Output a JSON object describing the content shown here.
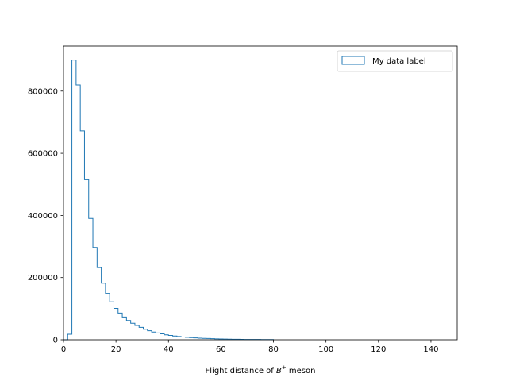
{
  "chart_data": {
    "type": "histogram",
    "title": "",
    "xlabel_prefix": "Flight distance of ",
    "xlabel_symbol": "B",
    "xlabel_superscript": "+",
    "xlabel_suffix": " meson",
    "ylabel": "",
    "xlim": [
      0,
      150
    ],
    "ylim": [
      0,
      945000
    ],
    "xticks": [
      0,
      20,
      40,
      60,
      80,
      100,
      120,
      140
    ],
    "yticks": [
      0,
      200000,
      400000,
      600000,
      800000
    ],
    "grid": false,
    "legend_position": "top-right",
    "series": [
      {
        "name": "My data label",
        "color": "#1f77b4",
        "histtype": "step",
        "bin_edges": [
          0,
          1.6,
          3.2,
          4.8,
          6.4,
          8.0,
          9.6,
          11.2,
          12.8,
          14.4,
          16.0,
          17.6,
          19.2,
          20.8,
          22.4,
          24.0,
          25.6,
          27.2,
          28.8,
          30.4,
          32.0,
          33.6,
          35.2,
          36.8,
          38.4,
          40.0,
          41.6,
          43.2,
          44.8,
          46.4,
          48.0,
          49.6,
          51.2,
          52.8,
          54.4,
          56.0,
          57.6,
          59.2,
          60.8,
          62.4,
          64.0,
          65.6,
          67.2,
          68.8,
          70.4,
          72.0,
          73.6,
          75.2,
          76.8,
          78.4,
          80.0
        ],
        "counts": [
          0,
          18000,
          900000,
          820000,
          672000,
          515000,
          390000,
          297000,
          232000,
          182000,
          149000,
          122000,
          101000,
          86000,
          73000,
          62000,
          53000,
          46000,
          40000,
          34000,
          29000,
          25000,
          22000,
          19000,
          16000,
          14000,
          12000,
          10500,
          9000,
          8000,
          7000,
          6000,
          5200,
          4500,
          4000,
          3500,
          3000,
          2600,
          2300,
          2000,
          1700,
          1500,
          1300,
          1100,
          1000,
          900,
          800,
          700,
          600,
          500
        ]
      }
    ]
  }
}
